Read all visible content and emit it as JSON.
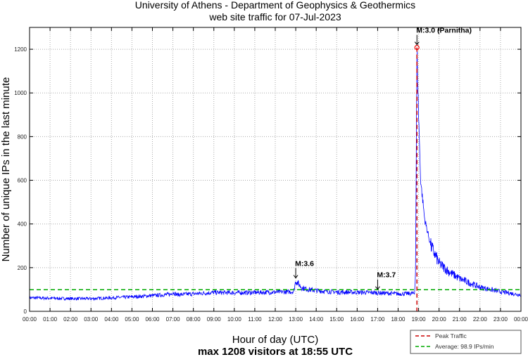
{
  "chart_data": {
    "type": "line",
    "title": "University of Athens - Department of Geophysics & Geothermics",
    "subtitle": "web site traffic for 07-Jul-2023",
    "xlabel": "Hour of day (UTC)",
    "xlabel2": "max 1208 visitors at 18:55 UTC",
    "ylabel": "Number of unique IPs in the last minute",
    "xlim": [
      0,
      24
    ],
    "ylim": [
      0,
      1300
    ],
    "grid": true,
    "x_ticks": [
      "00:00",
      "01:00",
      "02:00",
      "03:00",
      "04:00",
      "05:00",
      "06:00",
      "07:00",
      "08:00",
      "09:00",
      "10:00",
      "11:00",
      "12:00",
      "13:00",
      "14:00",
      "15:00",
      "16:00",
      "17:00",
      "18:00",
      "19:00",
      "20:00",
      "21:00",
      "22:00",
      "23:00",
      "00:00"
    ],
    "y_ticks": [
      0,
      200,
      400,
      600,
      800,
      1000,
      1200
    ],
    "series": [
      {
        "name": "Traffic",
        "color": "#0000ff",
        "x": [
          0,
          1,
          2,
          3,
          4,
          5,
          6,
          6.9,
          7,
          7.2,
          8,
          9,
          10,
          11,
          12,
          12.9,
          13,
          13.3,
          13.6,
          14,
          15,
          16,
          17,
          18,
          18.8,
          18.85,
          18.92,
          19.0,
          19.1,
          19.3,
          19.6,
          20,
          20.5,
          21,
          22,
          23,
          24
        ],
        "y": [
          62,
          60,
          58,
          58,
          62,
          66,
          72,
          78,
          88,
          76,
          80,
          86,
          85,
          86,
          88,
          90,
          140,
          108,
          100,
          95,
          88,
          87,
          85,
          80,
          82,
          180,
          1208,
          900,
          600,
          420,
          300,
          220,
          180,
          150,
          110,
          90,
          75
        ]
      }
    ],
    "peak": {
      "x": 18.92,
      "y": 1208,
      "label": "Peak Traffic",
      "color": "#cc0000"
    },
    "average": {
      "y": 98.9,
      "label": "Average: 98.9 IPs/min",
      "color": "#00aa00"
    },
    "annotations": [
      {
        "text": "M:3.0 (Parnitha)",
        "x": 18.92,
        "y": 1208
      },
      {
        "text": "M:3.6",
        "x": 13.0,
        "y": 140
      },
      {
        "text": "M:3.7",
        "x": 17.0,
        "y": 88
      }
    ],
    "legend": {
      "placement": "bottom-right",
      "entries": [
        "Peak Traffic",
        "Average: 98.9 IPs/min"
      ]
    }
  }
}
